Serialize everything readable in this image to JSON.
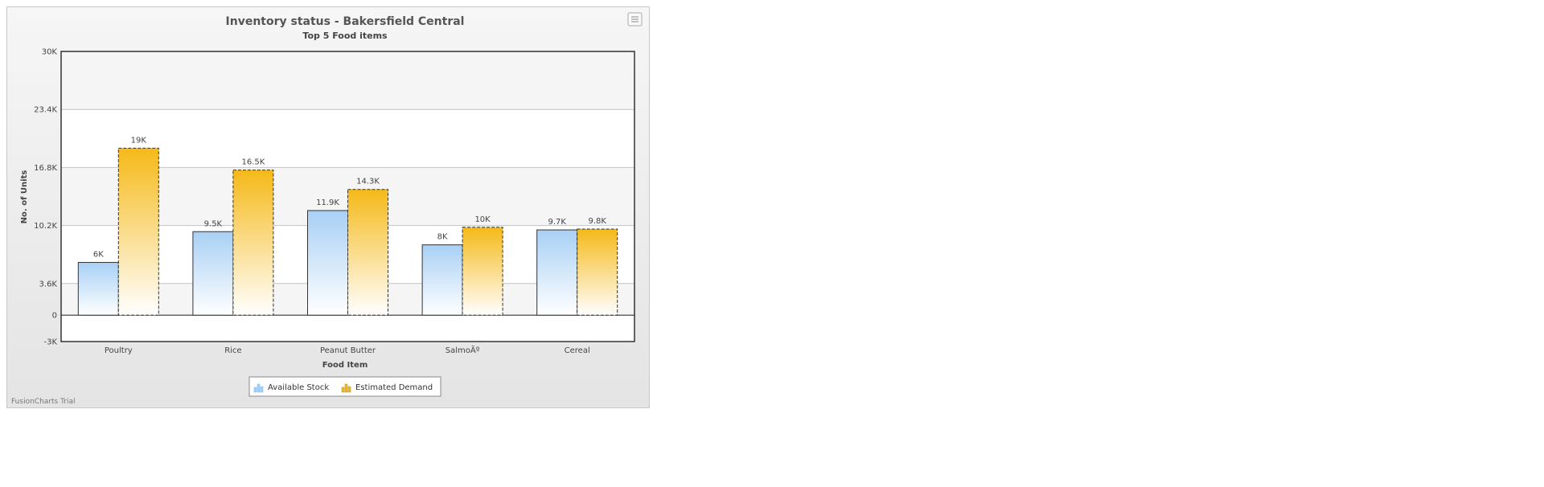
{
  "chart_data": {
    "type": "bar",
    "title": "Inventory status - Bakersfield Central",
    "subtitle": "Top 5 Food items",
    "xlabel": "Food Item",
    "ylabel": "No. of Units",
    "ylim": [
      -3000,
      30000
    ],
    "yticks": [
      {
        "value": 30000,
        "label": "30K"
      },
      {
        "value": 23400,
        "label": "23.4K"
      },
      {
        "value": 16800,
        "label": "16.8K"
      },
      {
        "value": 10200,
        "label": "10.2K"
      },
      {
        "value": 3600,
        "label": "3.6K"
      },
      {
        "value": 0,
        "label": "0"
      },
      {
        "value": -3000,
        "label": "-3K"
      }
    ],
    "categories": [
      "Poultry",
      "Rice",
      "Peanut Butter",
      "SalmoÃº",
      "Cereal"
    ],
    "series": [
      {
        "name": "Available Stock",
        "values": [
          6000,
          9500,
          11900,
          8000,
          9700
        ],
        "labels": [
          "6K",
          "9.5K",
          "11.9K",
          "8K",
          "9.7K"
        ],
        "color_top": "#a8d0f5",
        "color_bottom": "#ffffff",
        "dashed": false
      },
      {
        "name": "Estimated Demand",
        "values": [
          19000,
          16500,
          14300,
          10000,
          9800
        ],
        "labels": [
          "19K",
          "16.5K",
          "14.3K",
          "10K",
          "9.8K"
        ],
        "color_top": "#f5b918",
        "color_bottom": "#ffffff",
        "dashed": true
      }
    ],
    "grid": true,
    "legend_position": "bottom-center"
  },
  "footer": "FusionCharts Trial",
  "menu_icon": "hamburger-menu-icon"
}
